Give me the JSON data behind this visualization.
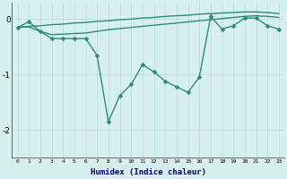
{
  "x": [
    0,
    1,
    2,
    3,
    4,
    5,
    6,
    7,
    8,
    9,
    10,
    11,
    12,
    13,
    14,
    15,
    16,
    17,
    18,
    19,
    20,
    21,
    22,
    23
  ],
  "line1": [
    -0.15,
    -0.05,
    -0.22,
    -0.35,
    -0.35,
    -0.35,
    -0.35,
    -0.65,
    -1.85,
    -1.38,
    -1.18,
    -0.82,
    -0.95,
    -1.12,
    -1.22,
    -1.32,
    -1.05,
    0.05,
    -0.18,
    -0.12,
    0.02,
    0.02,
    -0.12,
    -0.18
  ],
  "line2": [
    -0.15,
    -0.13,
    -0.12,
    -0.1,
    -0.09,
    -0.07,
    -0.06,
    -0.04,
    -0.03,
    -0.01,
    0.0,
    0.02,
    0.03,
    0.05,
    0.06,
    0.07,
    0.09,
    0.1,
    0.11,
    0.12,
    0.13,
    0.13,
    0.12,
    0.1
  ],
  "line3": [
    -0.15,
    -0.14,
    -0.22,
    -0.28,
    -0.27,
    -0.26,
    -0.25,
    -0.22,
    -0.19,
    -0.17,
    -0.15,
    -0.13,
    -0.11,
    -0.09,
    -0.07,
    -0.05,
    -0.03,
    -0.01,
    0.01,
    0.03,
    0.05,
    0.06,
    0.05,
    0.03
  ],
  "ylim": [
    -2.5,
    0.3
  ],
  "xlim": [
    -0.5,
    23.5
  ],
  "yticks": [
    0,
    -1,
    -2
  ],
  "xticks": [
    0,
    1,
    2,
    3,
    4,
    5,
    6,
    7,
    8,
    9,
    10,
    11,
    12,
    13,
    14,
    15,
    16,
    17,
    18,
    19,
    20,
    21,
    22,
    23
  ],
  "xlabel": "Humidex (Indice chaleur)",
  "color": "#2e8b7a",
  "bg_color": "#d8f0ed",
  "grid_color": "#b8ddd9",
  "marker": "D",
  "marker_size": 2.5,
  "linewidth": 1.0
}
